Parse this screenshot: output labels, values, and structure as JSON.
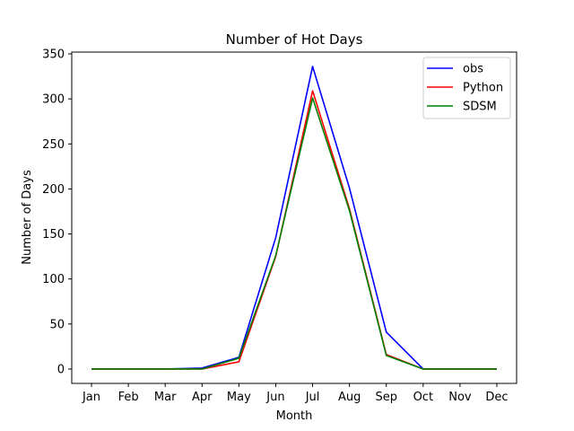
{
  "chart_data": {
    "type": "line",
    "title": "Number of Hot Days",
    "xlabel": "Month",
    "ylabel": "Number of Days",
    "categories": [
      "Jan",
      "Feb",
      "Mar",
      "Apr",
      "May",
      "Jun",
      "Jul",
      "Aug",
      "Sep",
      "Oct",
      "Nov",
      "Dec"
    ],
    "ylim": [
      -16,
      352
    ],
    "yticks": [
      0,
      50,
      100,
      150,
      200,
      250,
      300,
      350
    ],
    "grid": false,
    "legend_position": "top-right",
    "series": [
      {
        "name": "obs",
        "color": "#0000ff",
        "values": [
          0,
          0,
          0,
          1,
          13,
          146,
          336,
          201,
          41,
          0,
          0,
          0
        ]
      },
      {
        "name": "Python",
        "color": "#ff0000",
        "values": [
          0,
          0,
          0,
          0,
          8,
          125,
          309,
          178,
          16,
          0,
          0,
          0
        ]
      },
      {
        "name": "SDSM",
        "color": "#008000",
        "values": [
          0,
          0,
          0,
          0,
          12,
          126,
          301,
          176,
          15,
          0,
          0,
          0
        ]
      }
    ]
  }
}
